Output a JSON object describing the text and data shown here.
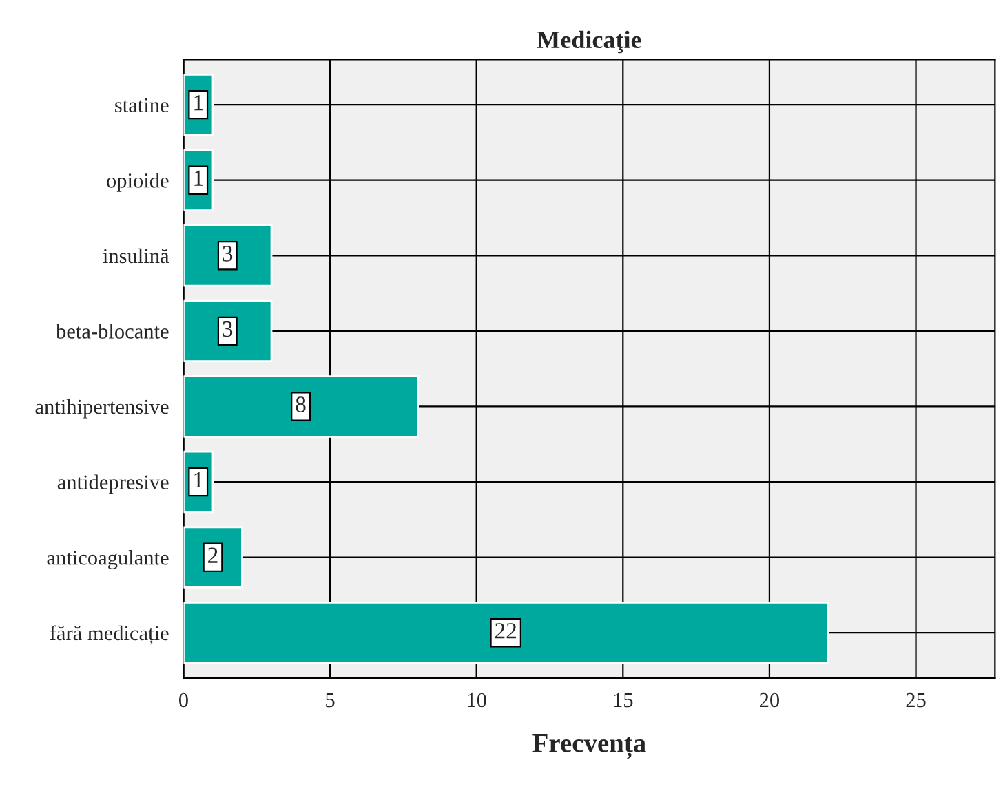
{
  "chart_data": {
    "type": "bar",
    "orientation": "horizontal",
    "title": "Medicaţie",
    "xlabel": "Frecvența",
    "categories": [
      "statine",
      "opioide",
      "insulină",
      "beta-blocante",
      "antihipertensive",
      "antidepresive",
      "anticoagulante",
      "fără medicație"
    ],
    "values": [
      1,
      1,
      3,
      3,
      8,
      1,
      2,
      22
    ],
    "color": "#00a99d",
    "xlim": [
      0,
      27.7
    ],
    "xticks": [
      0,
      5,
      10,
      15,
      20,
      25
    ],
    "grid": true,
    "data_labels": true
  }
}
